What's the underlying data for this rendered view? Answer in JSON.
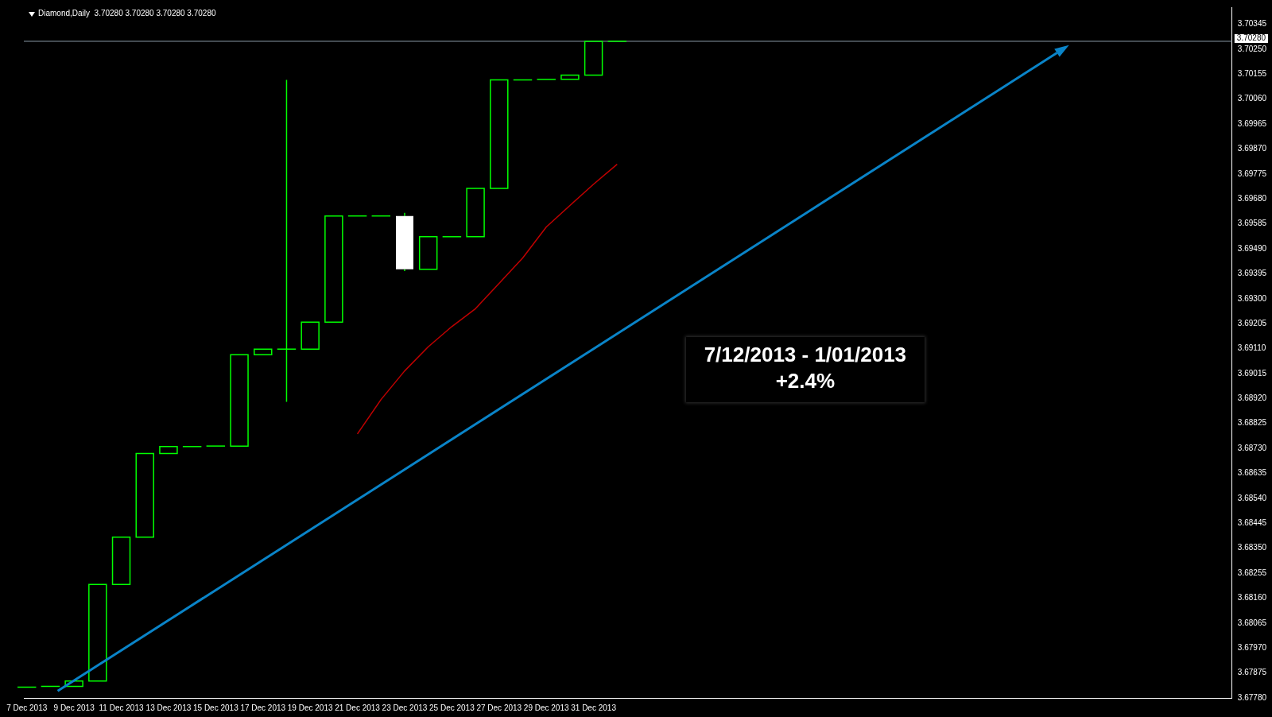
{
  "chart_data": {
    "type": "candlestick",
    "title": "Diamond,Daily  3.70280 3.70280 3.70280 3.70280",
    "annotations": [
      "7/12/2013 - 1/01/2013",
      "+2.4%"
    ],
    "color": "#00ff00",
    "colors": [
      "#00ff00",
      "#00ff00",
      "#00ff00",
      "#00ff00",
      "#00ff00",
      "#00ff00",
      "#00ff00",
      "#00ff00",
      "#00ff00",
      "#00ff00",
      "#00ff00",
      "#00ff00",
      "#00ff00",
      "#00ff00",
      "#00ff00",
      "#00ff00",
      "#ffffff",
      "#00ff00",
      "#00ff00",
      "#00ff00",
      "#00ff00",
      "#00ff00",
      "#00ff00",
      "#00ff00",
      "#00ff00",
      "#00ff00"
    ],
    "x": [
      "2013-12-07",
      "2013-12-08",
      "2013-12-09",
      "2013-12-10",
      "2013-12-11",
      "2013-12-12",
      "2013-12-13",
      "2013-12-14",
      "2013-12-15",
      "2013-12-16",
      "2013-12-17",
      "2013-12-18",
      "2013-12-19",
      "2013-12-20",
      "2013-12-21",
      "2013-12-22",
      "2013-12-23",
      "2013-12-24",
      "2013-12-25",
      "2013-12-26",
      "2013-12-27",
      "2013-12-28",
      "2013-12-29",
      "2013-12-30",
      "2013-12-31",
      "2014-01-01"
    ],
    "ohlc": [
      [
        3.67821,
        3.67821,
        3.67821,
        3.67821
      ],
      [
        3.67824,
        3.67824,
        3.67824,
        3.67824
      ],
      [
        3.67824,
        3.67844,
        3.67824,
        3.67844
      ],
      [
        3.67844,
        3.68212,
        3.67844,
        3.68212
      ],
      [
        3.68212,
        3.68392,
        3.68212,
        3.68392
      ],
      [
        3.68392,
        3.68711,
        3.68392,
        3.68711
      ],
      [
        3.68711,
        3.68737,
        3.68711,
        3.68737
      ],
      [
        3.68737,
        3.68737,
        3.68737,
        3.68737
      ],
      [
        3.68739,
        3.68739,
        3.68739,
        3.68739
      ],
      [
        3.68739,
        3.69087,
        3.68739,
        3.69087
      ],
      [
        3.69087,
        3.69108,
        3.69087,
        3.69108
      ],
      [
        3.69108,
        3.70133,
        3.68907,
        3.69108
      ],
      [
        3.69108,
        3.69211,
        3.69108,
        3.69211
      ],
      [
        3.69211,
        3.69615,
        3.69211,
        3.69615
      ],
      [
        3.69615,
        3.69615,
        3.69615,
        3.69615
      ],
      [
        3.69615,
        3.69615,
        3.69615,
        3.69615
      ],
      [
        3.69615,
        3.69627,
        3.69405,
        3.69412
      ],
      [
        3.69412,
        3.69536,
        3.69412,
        3.69536
      ],
      [
        3.69536,
        3.69536,
        3.69536,
        3.69536
      ],
      [
        3.69536,
        3.6972,
        3.69536,
        3.6972
      ],
      [
        3.6972,
        3.70133,
        3.6972,
        3.70133
      ],
      [
        3.70133,
        3.70133,
        3.70133,
        3.70133
      ],
      [
        3.70135,
        3.70135,
        3.70135,
        3.70135
      ],
      [
        3.70135,
        3.70151,
        3.70135,
        3.70151
      ],
      [
        3.70151,
        3.7028,
        3.70151,
        3.7028
      ],
      [
        3.7028,
        3.7028,
        3.7028,
        3.7028
      ]
    ],
    "series": [
      {
        "type": "line",
        "color": "#c00000",
        "x": [
          "2013-12-21",
          "2013-12-22",
          "2013-12-23",
          "2013-12-24",
          "2013-12-25",
          "2013-12-26",
          "2013-12-27",
          "2013-12-28",
          "2013-12-29",
          "2013-12-30",
          "2013-12-31",
          "2014-01-01"
        ],
        "values": [
          3.68785,
          3.68916,
          3.69025,
          3.69117,
          3.69194,
          3.69262,
          3.69358,
          3.69455,
          3.69573,
          3.69655,
          3.69736,
          3.69812
        ]
      }
    ],
    "ref_lines": [
      {
        "axis": "y",
        "value": 3.7028,
        "label": "3.70280",
        "color": "#8a9aa8"
      }
    ],
    "xlim": [
      "2013-12-06T21:00",
      "2014-01-27T01:00"
    ],
    "xticks": [
      {
        "value": "2013-12-07",
        "label": "7 Dec 2013"
      },
      {
        "value": "2013-12-09",
        "label": "9 Dec 2013"
      },
      {
        "value": "2013-12-11",
        "label": "11 Dec 2013"
      },
      {
        "value": "2013-12-13",
        "label": "13 Dec 2013"
      },
      {
        "value": "2013-12-15",
        "label": "15 Dec 2013"
      },
      {
        "value": "2013-12-17",
        "label": "17 Dec 2013"
      },
      {
        "value": "2013-12-19",
        "label": "19 Dec 2013"
      },
      {
        "value": "2013-12-21",
        "label": "21 Dec 2013"
      },
      {
        "value": "2013-12-23",
        "label": "23 Dec 2013"
      },
      {
        "value": "2013-12-25",
        "label": "25 Dec 2013"
      },
      {
        "value": "2013-12-27",
        "label": "27 Dec 2013"
      },
      {
        "value": "2013-12-29",
        "label": "29 Dec 2013"
      },
      {
        "value": "2013-12-31",
        "label": "31 Dec 2013"
      }
    ],
    "ylim": [
      3.6778,
      3.7041
    ],
    "yticks": [
      {
        "value": 3.6778,
        "label": "3.67780"
      },
      {
        "value": 3.67875,
        "label": "3.67875"
      },
      {
        "value": 3.6797,
        "label": "3.67970"
      },
      {
        "value": 3.68065,
        "label": "3.68065"
      },
      {
        "value": 3.6816,
        "label": "3.68160"
      },
      {
        "value": 3.68255,
        "label": "3.68255"
      },
      {
        "value": 3.6835,
        "label": "3.68350"
      },
      {
        "value": 3.68445,
        "label": "3.68445"
      },
      {
        "value": 3.6854,
        "label": "3.68540"
      },
      {
        "value": 3.68635,
        "label": "3.68635"
      },
      {
        "value": 3.6873,
        "label": "3.68730"
      },
      {
        "value": 3.68825,
        "label": "3.68825"
      },
      {
        "value": 3.6892,
        "label": "3.68920"
      },
      {
        "value": 3.69015,
        "label": "3.69015"
      },
      {
        "value": 3.6911,
        "label": "3.69110"
      },
      {
        "value": 3.69205,
        "label": "3.69205"
      },
      {
        "value": 3.693,
        "label": "3.69300"
      },
      {
        "value": 3.69395,
        "label": "3.69395"
      },
      {
        "value": 3.6949,
        "label": "3.69490"
      },
      {
        "value": 3.69585,
        "label": "3.69585"
      },
      {
        "value": 3.6968,
        "label": "3.69680"
      },
      {
        "value": 3.69775,
        "label": "3.69775"
      },
      {
        "value": 3.6987,
        "label": "3.69870"
      },
      {
        "value": 3.69965,
        "label": "3.69965"
      },
      {
        "value": 3.7006,
        "label": "3.70060"
      },
      {
        "value": 3.70155,
        "label": "3.70155"
      },
      {
        "value": 3.7025,
        "label": "3.70250"
      },
      {
        "value": 3.70345,
        "label": "3.70345"
      }
    ]
  }
}
